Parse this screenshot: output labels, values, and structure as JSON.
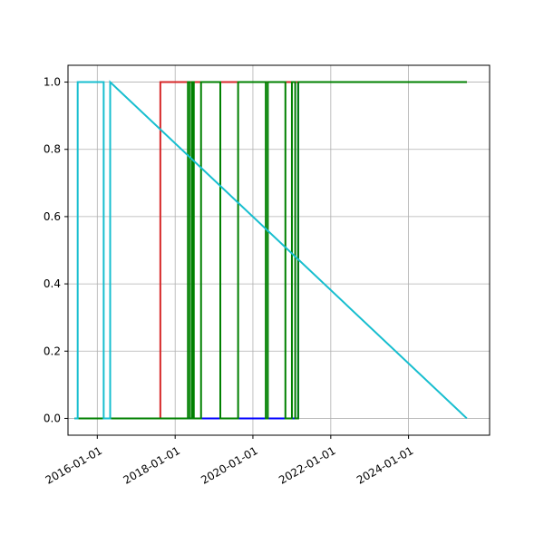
{
  "chart_data": {
    "type": "line",
    "title": "",
    "xlabel": "",
    "ylabel": "",
    "grid": true,
    "legend": "none",
    "x_axis": {
      "kind": "date",
      "range": [
        "2015-04-01",
        "2026-01-31"
      ],
      "ticks": [
        "2016-01-01",
        "2018-01-01",
        "2020-01-01",
        "2022-01-01",
        "2024-01-01"
      ],
      "tick_labels": [
        "2016-01-01",
        "2018-01-01",
        "2020-01-01",
        "2022-01-01",
        "2024-01-01"
      ]
    },
    "y_axis": {
      "range": [
        -0.05,
        1.05
      ],
      "ticks": [
        0.0,
        0.2,
        0.4,
        0.6,
        0.8,
        1.0
      ],
      "tick_labels": [
        "0.0",
        "0.2",
        "0.4",
        "0.6",
        "0.8",
        "1.0"
      ]
    },
    "series": [
      {
        "color": "#0000ff",
        "x": [
          "2015-06-01",
          "2021-03-01",
          "2021-03-01",
          "2025-07-01"
        ],
        "y": [
          0,
          0,
          1,
          1
        ]
      },
      {
        "color": "#d62728",
        "x": [
          "2015-06-01",
          "2017-08-15",
          "2017-08-15",
          "2025-07-01"
        ],
        "y": [
          0,
          0,
          1,
          1
        ]
      },
      {
        "color": "#008000",
        "x": [
          "2015-06-01",
          "2018-05-01",
          "2018-05-01",
          "2018-05-20",
          "2018-05-20",
          "2018-06-10",
          "2018-06-10",
          "2018-06-25",
          "2018-06-25",
          "2018-09-01",
          "2018-09-01",
          "2019-03-01",
          "2019-03-01",
          "2019-08-15",
          "2019-08-15",
          "2020-05-01",
          "2020-05-01",
          "2020-05-20",
          "2020-05-20",
          "2020-11-01",
          "2020-11-01",
          "2021-01-01",
          "2021-01-01",
          "2021-02-01",
          "2021-02-01",
          "2021-03-01",
          "2021-03-01",
          "2025-07-01"
        ],
        "y": [
          0,
          0,
          1,
          1,
          0,
          0,
          1,
          1,
          0,
          0,
          1,
          1,
          0,
          0,
          1,
          1,
          0,
          0,
          1,
          1,
          0,
          0,
          1,
          1,
          0,
          0,
          1,
          1
        ]
      },
      {
        "color": "#17becf",
        "x": [
          "2015-06-01",
          "2015-07-01",
          "2015-07-01",
          "2016-03-01",
          "2016-03-01",
          "2016-05-01",
          "2016-05-01",
          "2025-07-01"
        ],
        "y": [
          0,
          0,
          1,
          1,
          0,
          0,
          1,
          0
        ]
      }
    ]
  }
}
